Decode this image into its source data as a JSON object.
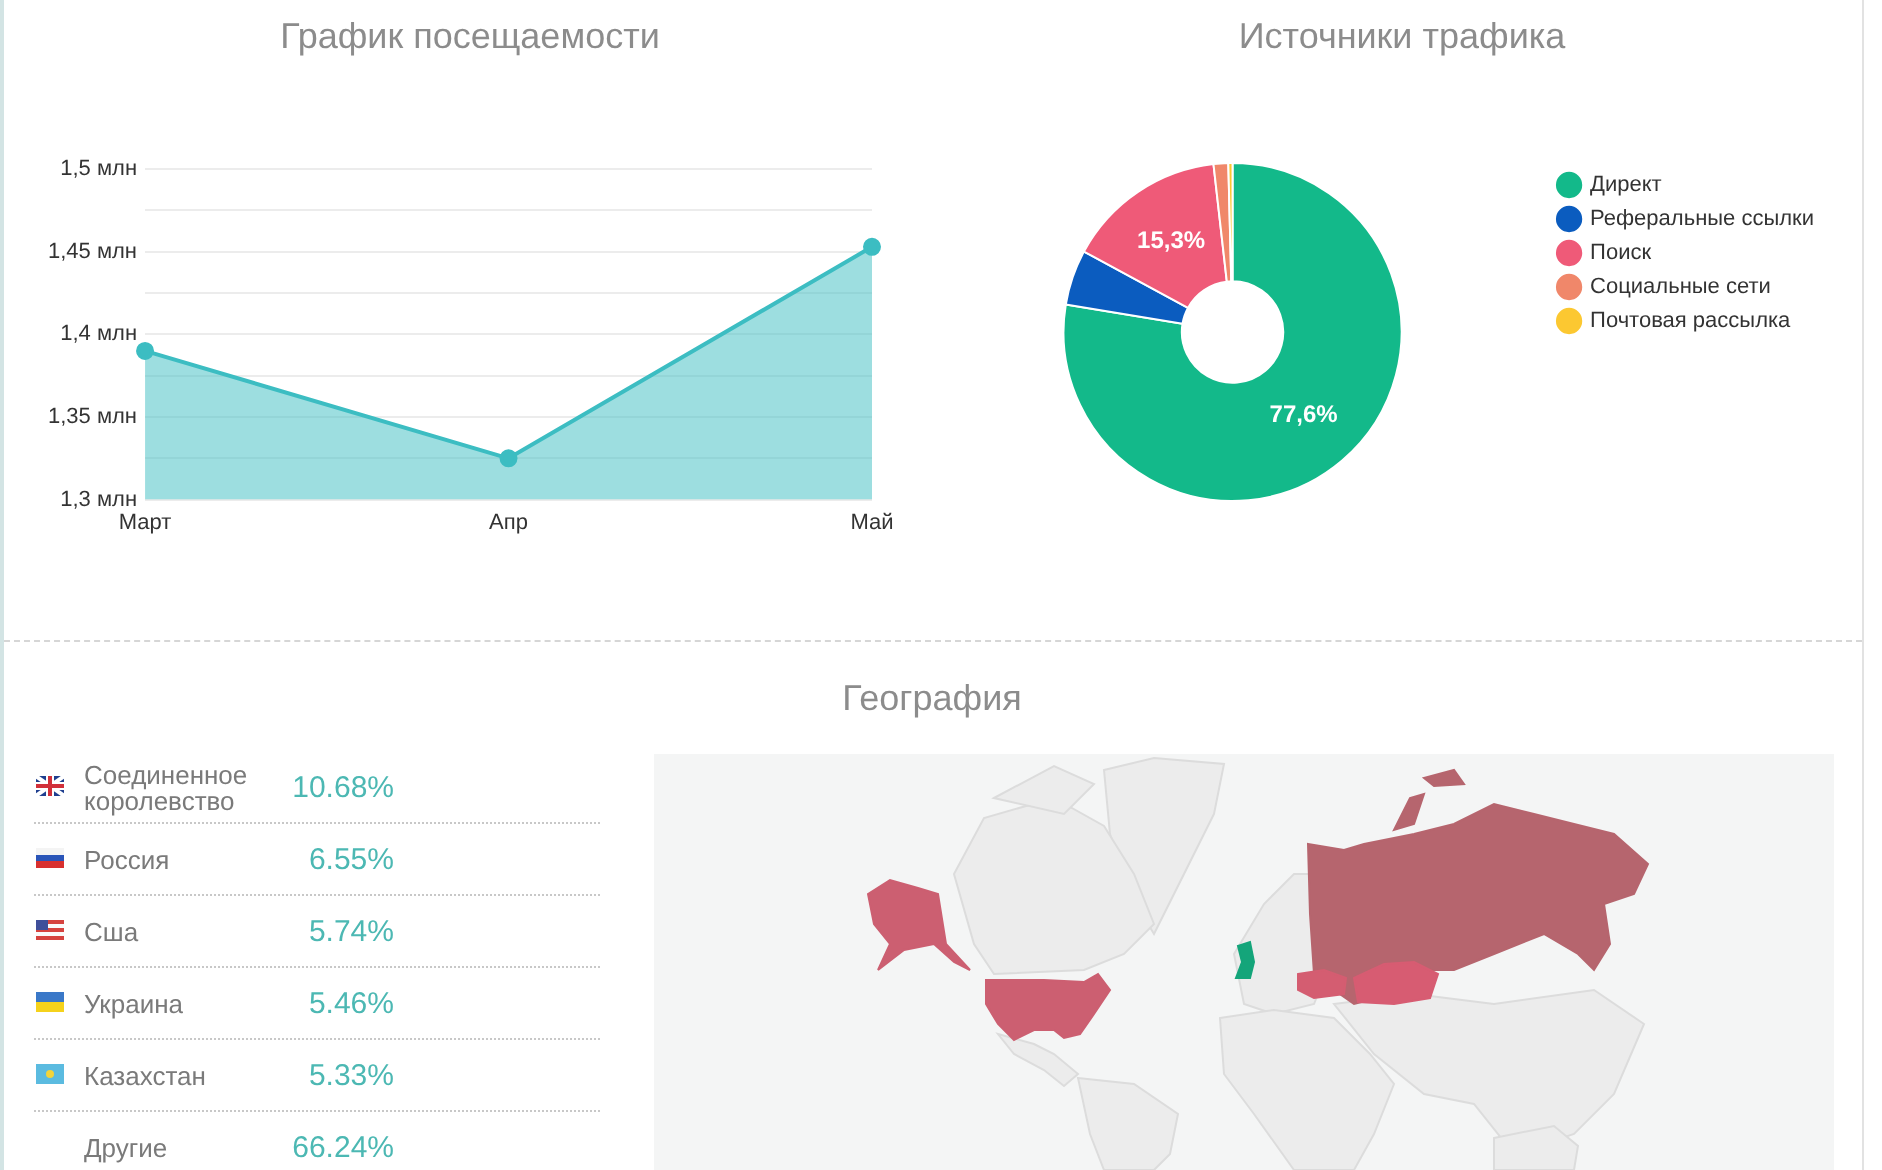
{
  "chart_data": [
    {
      "type": "area",
      "title": "График посещаемости",
      "categories": [
        "Март",
        "Апр",
        "Май"
      ],
      "values": [
        1.39,
        1.325,
        1.453
      ],
      "color": "#3cbdc2",
      "ylim": [
        1.3,
        1.5
      ],
      "yticks": [
        {
          "value": 1.3,
          "label": "1,3 млн"
        },
        {
          "value": 1.325,
          "label": null
        },
        {
          "value": 1.35,
          "label": "1,35 млн"
        },
        {
          "value": 1.375,
          "label": null
        },
        {
          "value": 1.4,
          "label": "1,4 млн"
        },
        {
          "value": 1.425,
          "label": null
        },
        {
          "value": 1.45,
          "label": "1,45 млн"
        },
        {
          "value": 1.475,
          "label": null
        },
        {
          "value": 1.5,
          "label": "1,5 млн"
        }
      ],
      "grid": "y",
      "marker": "circle",
      "line_style": "solid"
    },
    {
      "type": "donut",
      "title": "Источники трафика",
      "categories": [
        "Директ",
        "Реферальные ссылки",
        "Поиск",
        "Социальные сети",
        "Почтовая рассылка"
      ],
      "values": [
        77.6,
        5.3,
        15.3,
        1.4,
        0.4
      ],
      "colors": [
        "#13b98a",
        "#0b5cbf",
        "#ef5a78",
        "#f0876a",
        "#fcc831"
      ],
      "value_labels": [
        "77,6%",
        null,
        "15,3%",
        null,
        null
      ],
      "legend": "right"
    },
    {
      "type": "other",
      "title": "География",
      "categories": [
        "Соединенное королевство",
        "Россия",
        "Сша",
        "Украина",
        "Казахстан",
        "Другие"
      ],
      "values": [
        10.68,
        6.55,
        5.74,
        5.46,
        5.33,
        66.24
      ],
      "value_labels": [
        "10.68%",
        "6.55%",
        "5.74%",
        "5.46%",
        "5.33%",
        "66.24%"
      ]
    }
  ]
}
